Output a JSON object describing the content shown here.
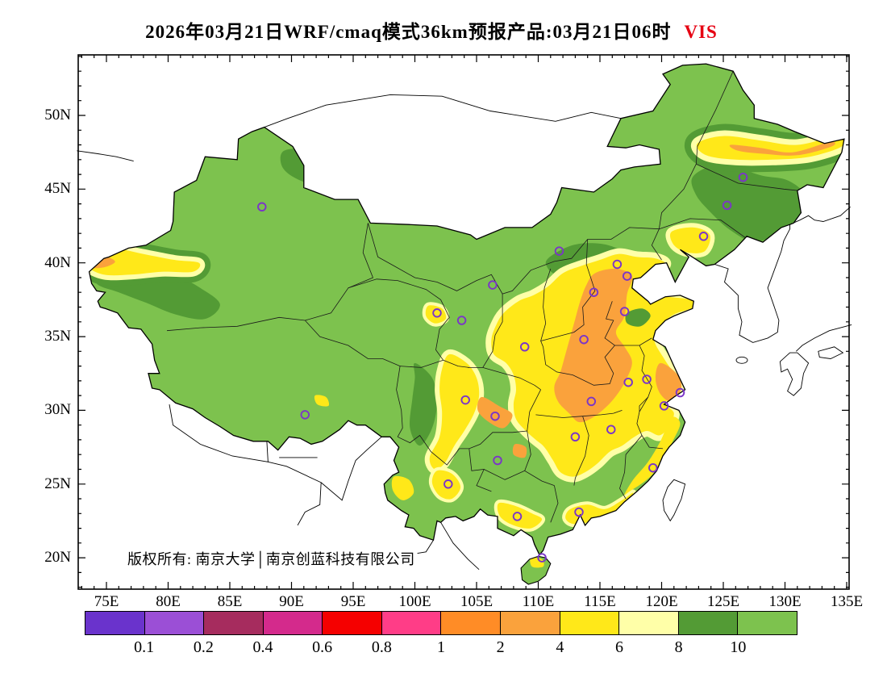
{
  "title": {
    "main": "2026年03月21日WRF/cmaq模式36km预报产品:03月21日06时",
    "variable": "VIS",
    "variable_color": "#e60012"
  },
  "copyright": "版权所有: 南京大学│南京创蓝科技有限公司",
  "axes": {
    "lon_labels": [
      "75E",
      "80E",
      "85E",
      "90E",
      "95E",
      "100E",
      "105E",
      "110E",
      "115E",
      "120E",
      "125E",
      "130E",
      "135E"
    ],
    "lat_labels": [
      "50N",
      "45N",
      "40N",
      "35N",
      "30N",
      "25N",
      "20N"
    ]
  },
  "colorbar": {
    "labels": [
      "0.1",
      "0.2",
      "0.4",
      "0.6",
      "0.8",
      "1",
      "2",
      "4",
      "6",
      "8",
      "10"
    ],
    "colors": [
      "#6a33cc",
      "#9b4fd6",
      "#a62c5e",
      "#d42a8c",
      "#f50000",
      "#ff3d87",
      "#ff8c26",
      "#faa23c",
      "#ffe819",
      "#ffffa8",
      "#539b35",
      "#7dc24e"
    ]
  },
  "markers": {
    "color": "#7b35c8"
  },
  "chart_data": {
    "type": "heatmap",
    "title": "2026年03月21日WRF/cmaq模式36km预报产品:03月21日06时 VIS",
    "variable": "VIS",
    "model_text": "WRF/cmaq模式36km",
    "forecast_issue_date": "2026年03月21日",
    "valid_time": "03月21日06时",
    "projection": "lat-lon",
    "lon_tick_values_e": [
      75,
      80,
      85,
      90,
      95,
      100,
      105,
      110,
      115,
      120,
      125,
      130,
      135
    ],
    "lat_tick_values_n": [
      20,
      25,
      30,
      35,
      40,
      45,
      50
    ],
    "levels": [
      0.1,
      0.2,
      0.4,
      0.6,
      0.8,
      1,
      2,
      4,
      6,
      8,
      10
    ],
    "level_colors": [
      "#6a33cc",
      "#9b4fd6",
      "#a62c5e",
      "#d42a8c",
      "#f50000",
      "#ff3d87",
      "#ff8c26",
      "#faa23c",
      "#ffe819",
      "#ffffa8",
      "#539b35",
      "#7dc24e"
    ],
    "background_band": "> 10 over most of China",
    "field_summary": [
      {
        "region": "Most of west/north China, Tibet, Yunnan interior, NE plains",
        "band": "> 10"
      },
      {
        "region": "Central-east China core: S Hebei, W Shandong, Henan, Hubei, N Hunan, W Anhui; coastal S Jiangsu / Shanghai; small cores near Chongqing, E Guizhou, Kashgar, NE band ~47-48N",
        "band": "2-4"
      },
      {
        "region": "Broad belt around the core: Shanxi, Shaanxi Guanzhong, Shandong, Jiangsu, N Zhejiang, Hunan, Sichuan Basin strip, coastal Fujian/Guangdong/Guangxi, Yunnan patches, Liaoning, NE band, Kashgar area",
        "band": "4-6"
      },
      {
        "region": "Thin fringes around all yellow areas",
        "band": "6-8"
      },
      {
        "region": "Mountain belts: E Heilongjiang/Changbai, Yanshan-Taihang near Beijing, central Shandong, Altay, W Kunlun near Kashgar, W Sichuan rim",
        "band": "8-10"
      }
    ],
    "station_markers_lonlat": [
      [
        87.6,
        43.8
      ],
      [
        91.1,
        29.7
      ],
      [
        101.8,
        36.6
      ],
      [
        103.8,
        36.1
      ],
      [
        106.3,
        38.5
      ],
      [
        108.9,
        34.3
      ],
      [
        104.1,
        30.7
      ],
      [
        106.5,
        29.6
      ],
      [
        106.7,
        26.6
      ],
      [
        102.7,
        25.0
      ],
      [
        108.3,
        22.8
      ],
      [
        110.3,
        20.0
      ],
      [
        113.3,
        23.1
      ],
      [
        113.0,
        28.2
      ],
      [
        114.3,
        30.6
      ],
      [
        115.9,
        28.7
      ],
      [
        119.3,
        26.1
      ],
      [
        120.2,
        30.3
      ],
      [
        121.5,
        31.2
      ],
      [
        118.8,
        32.1
      ],
      [
        117.3,
        31.9
      ],
      [
        113.7,
        34.8
      ],
      [
        114.5,
        38.0
      ],
      [
        111.7,
        40.8
      ],
      [
        123.4,
        41.8
      ],
      [
        125.3,
        43.9
      ],
      [
        126.6,
        45.8
      ],
      [
        116.4,
        39.9
      ],
      [
        117.2,
        39.1
      ],
      [
        117.0,
        36.7
      ]
    ]
  }
}
